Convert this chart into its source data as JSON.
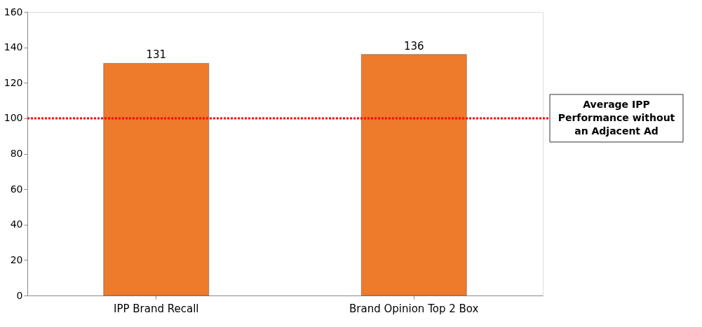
{
  "chart_data": {
    "type": "bar",
    "categories": [
      "IPP Brand Recall",
      "Brand Opinion Top 2 Box"
    ],
    "values": [
      131,
      136
    ],
    "color": "#ee7a2c",
    "ylim": [
      0,
      160
    ],
    "yticks": [
      0,
      20,
      40,
      60,
      80,
      100,
      120,
      140,
      160
    ],
    "grid": false,
    "data_labels": true,
    "ref_lines": [
      {
        "axis": "y",
        "value": 100,
        "label": "Average IPP Performance without an Adjacent Ad",
        "color": "#ff0000",
        "line_style": "dotted"
      }
    ]
  }
}
